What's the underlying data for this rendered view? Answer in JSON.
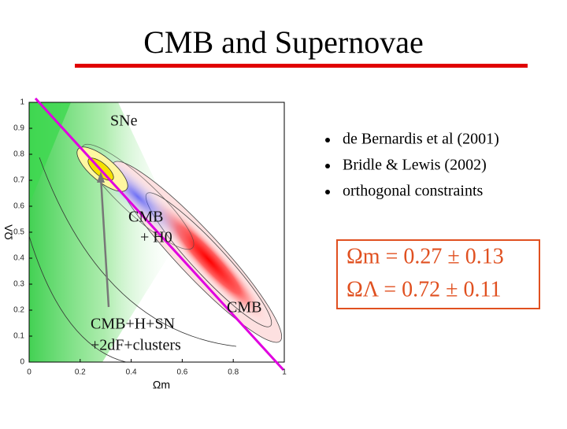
{
  "title": "CMB and Supernovae",
  "bullets": [
    "de Bernardis et al (2001)",
    "Bridle & Lewis (2002)",
    "orthogonal constraints"
  ],
  "results": [
    "Ωm = 0.27 ± 0.13",
    "ΩΛ = 0.72 ± 0.11"
  ],
  "chart_data": {
    "type": "contour",
    "xlabel": "Ωm",
    "ylabel": "ΩΛ",
    "xlim": [
      0,
      1
    ],
    "ylim": [
      0,
      1
    ],
    "xticks": [
      0,
      0.2,
      0.4,
      0.6,
      0.8,
      1
    ],
    "yticks": [
      0,
      0.1,
      0.2,
      0.3,
      0.4,
      0.5,
      0.6,
      0.7,
      0.8,
      0.9,
      1
    ],
    "annotations": [
      "SNe",
      "CMB",
      "+ H0",
      "CMB",
      "CMB+H+SN",
      "+2dF+clusters"
    ]
  }
}
